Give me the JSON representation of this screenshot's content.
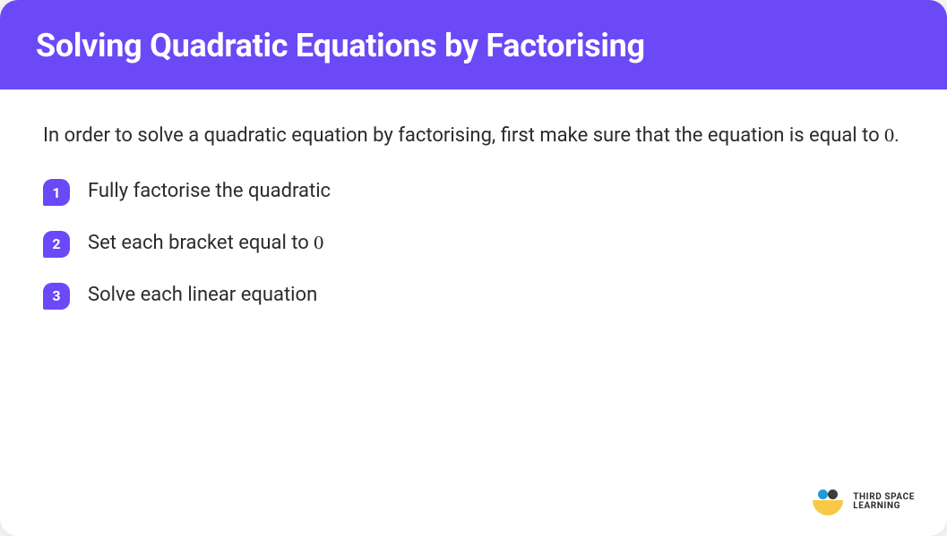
{
  "colors": {
    "header_bg": "#6b49f6",
    "badge_bg": "#6b49f6",
    "text": "#2b2b2b",
    "card_bg": "#ffffff",
    "logo_dot1": "#1f9bd7",
    "logo_dot2": "#3d3d3d",
    "logo_arc": "#f7c945"
  },
  "header": {
    "title": "Solving Quadratic Equations by Factorising"
  },
  "intro": {
    "text_before": "In order to solve a quadratic equation by factorising, first make sure that the equation is equal to ",
    "math": "0",
    "text_after": "."
  },
  "steps": [
    {
      "num": "1",
      "text": "Fully factorise the quadratic",
      "math": ""
    },
    {
      "num": "2",
      "text": "Set each bracket equal to ",
      "math": "0"
    },
    {
      "num": "3",
      "text": "Solve each linear equation",
      "math": ""
    }
  ],
  "logo": {
    "line1": "THIRD SPACE",
    "line2": "LEARNING"
  }
}
